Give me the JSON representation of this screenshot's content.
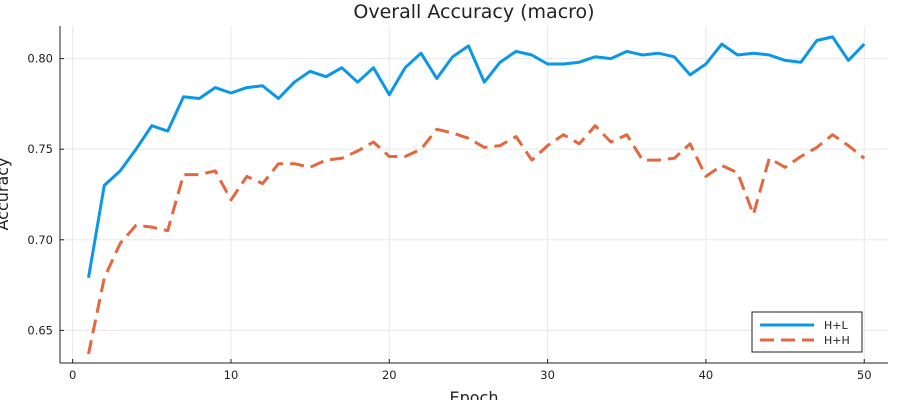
{
  "chart_data": {
    "type": "line",
    "title": "Overall Accuracy (macro)",
    "xlabel": "Epoch",
    "ylabel": "Accuracy",
    "xlim": [
      -0.8,
      51.5
    ],
    "ylim": [
      0.632,
      0.818
    ],
    "xticks": [
      0,
      10,
      20,
      30,
      40,
      50
    ],
    "yticks": [
      0.65,
      0.7,
      0.75,
      0.8
    ],
    "ytick_labels": [
      "0.65",
      "0.70",
      "0.75",
      "0.80"
    ],
    "grid": true,
    "legend_position": "bottom-right",
    "x": [
      1,
      2,
      3,
      4,
      5,
      6,
      7,
      8,
      9,
      10,
      11,
      12,
      13,
      14,
      15,
      16,
      17,
      18,
      19,
      20,
      21,
      22,
      23,
      24,
      25,
      26,
      27,
      28,
      29,
      30,
      31,
      32,
      33,
      34,
      35,
      36,
      37,
      38,
      39,
      40,
      41,
      42,
      43,
      44,
      45,
      46,
      47,
      48,
      49,
      50
    ],
    "series": [
      {
        "name": "H+L",
        "color": "#0b97e8",
        "dash": "solid",
        "values": [
          0.679,
          0.73,
          0.738,
          0.75,
          0.763,
          0.76,
          0.779,
          0.778,
          0.784,
          0.781,
          0.784,
          0.785,
          0.778,
          0.787,
          0.793,
          0.79,
          0.795,
          0.787,
          0.795,
          0.78,
          0.795,
          0.803,
          0.789,
          0.801,
          0.807,
          0.787,
          0.798,
          0.804,
          0.802,
          0.797,
          0.797,
          0.798,
          0.801,
          0.8,
          0.804,
          0.802,
          0.803,
          0.801,
          0.791,
          0.797,
          0.808,
          0.802,
          0.803,
          0.802,
          0.799,
          0.798,
          0.81,
          0.812,
          0.799,
          0.808
        ]
      },
      {
        "name": "H+H",
        "color": "#e2693f",
        "dash": "dashed",
        "values": [
          0.637,
          0.679,
          0.698,
          0.708,
          0.707,
          0.705,
          0.736,
          0.736,
          0.738,
          0.722,
          0.735,
          0.731,
          0.742,
          0.742,
          0.74,
          0.744,
          0.745,
          0.749,
          0.754,
          0.746,
          0.746,
          0.75,
          0.761,
          0.759,
          0.756,
          0.751,
          0.752,
          0.757,
          0.744,
          0.752,
          0.758,
          0.753,
          0.763,
          0.754,
          0.758,
          0.744,
          0.744,
          0.745,
          0.753,
          0.735,
          0.741,
          0.737,
          0.714,
          0.745,
          0.74,
          0.746,
          0.751,
          0.758,
          0.752,
          0.745
        ]
      }
    ]
  }
}
